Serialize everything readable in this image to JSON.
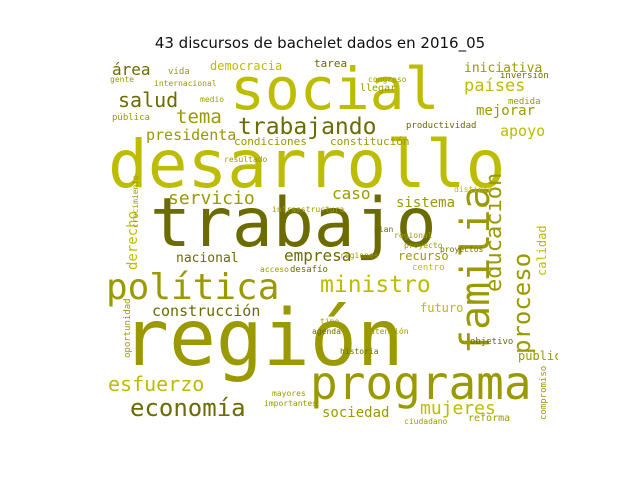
{
  "title": "43 discursos de bachelet dados en 2016_05",
  "palette": {
    "dark": "#6b6b00",
    "mid": "#9a9a00",
    "bright": "#bcbc00",
    "light": "#cfcf2a"
  },
  "words": [
    "región",
    "desarrollo",
    "trabajo",
    "social",
    "programa",
    "política",
    "familia",
    "trabajando",
    "economía",
    "ministro",
    "proceso",
    "educación",
    "servicio",
    "salud",
    "tema",
    "esfuerzo",
    "mujeres",
    "sociedad",
    "construcción",
    "presidenta",
    "países",
    "empresa",
    "nacional",
    "derecho",
    "apoyo",
    "sistema",
    "caso",
    "área",
    "democracia",
    "iniciativa",
    "mejorar",
    "condiciones",
    "constitución",
    "futuro",
    "recurso",
    "calidad",
    "público",
    "reforma",
    "tarea",
    "vida",
    "gente",
    "internacional",
    "productividad",
    "pública",
    "oportunidad",
    "historia",
    "centro",
    "objetivo",
    "mayores",
    "agenda",
    "atención",
    "importantes",
    "regiones",
    "acceso",
    "desafío",
    "proyectos",
    "regional",
    "infraestructura",
    "resultado",
    "compromiso",
    "ciudadano",
    "medida",
    "plan",
    "inversión",
    "proyecto",
    "distinto",
    "tipo",
    "crecimiento",
    "medio",
    "llegar",
    "congreso"
  ]
}
